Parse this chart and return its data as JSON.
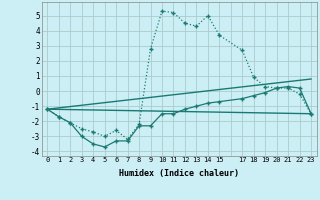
{
  "background_color": "#cceef5",
  "grid_color": "#aacccc",
  "line_color": "#1a7a72",
  "xlim": [
    -0.5,
    23.5
  ],
  "ylim": [
    -4.3,
    5.9
  ],
  "yticks": [
    -4,
    -3,
    -2,
    -1,
    0,
    1,
    2,
    3,
    4,
    5
  ],
  "xtick_labels": [
    "0",
    "1",
    "2",
    "3",
    "4",
    "5",
    "6",
    "7",
    "8",
    "9",
    "10",
    "11",
    "12",
    "13",
    "14",
    "15",
    "",
    "17",
    "18",
    "19",
    "20",
    "21",
    "22",
    "23"
  ],
  "xlabel": "Humidex (Indice chaleur)",
  "line1_x": [
    0,
    1,
    2,
    3,
    4,
    5,
    6,
    7,
    8,
    9,
    10,
    11,
    12,
    13,
    14,
    15,
    17,
    18,
    19,
    20,
    21,
    22,
    23
  ],
  "line1_y": [
    -1.2,
    -1.7,
    -2.1,
    -3.0,
    -3.5,
    -3.7,
    -3.3,
    -3.3,
    -2.3,
    -2.3,
    -1.5,
    -1.5,
    -1.2,
    -1.0,
    -0.8,
    -0.7,
    -0.5,
    -0.3,
    -0.1,
    0.2,
    0.3,
    0.2,
    -1.5
  ],
  "line2_x": [
    0,
    1,
    2,
    3,
    4,
    5,
    6,
    7,
    8,
    9,
    10,
    11,
    12,
    13,
    14,
    15,
    17,
    18,
    19,
    20,
    21,
    22,
    23
  ],
  "line2_y": [
    -1.2,
    -1.7,
    -2.1,
    -2.5,
    -2.7,
    -3.0,
    -2.6,
    -3.2,
    -2.2,
    2.8,
    5.3,
    5.2,
    4.5,
    4.3,
    5.0,
    3.7,
    2.7,
    0.9,
    0.3,
    0.2,
    0.2,
    -0.2,
    -1.5
  ],
  "line3_x": [
    0,
    23
  ],
  "line3_y": [
    -1.2,
    -1.5
  ],
  "line4_x": [
    0,
    23
  ],
  "line4_y": [
    -1.2,
    0.8
  ]
}
